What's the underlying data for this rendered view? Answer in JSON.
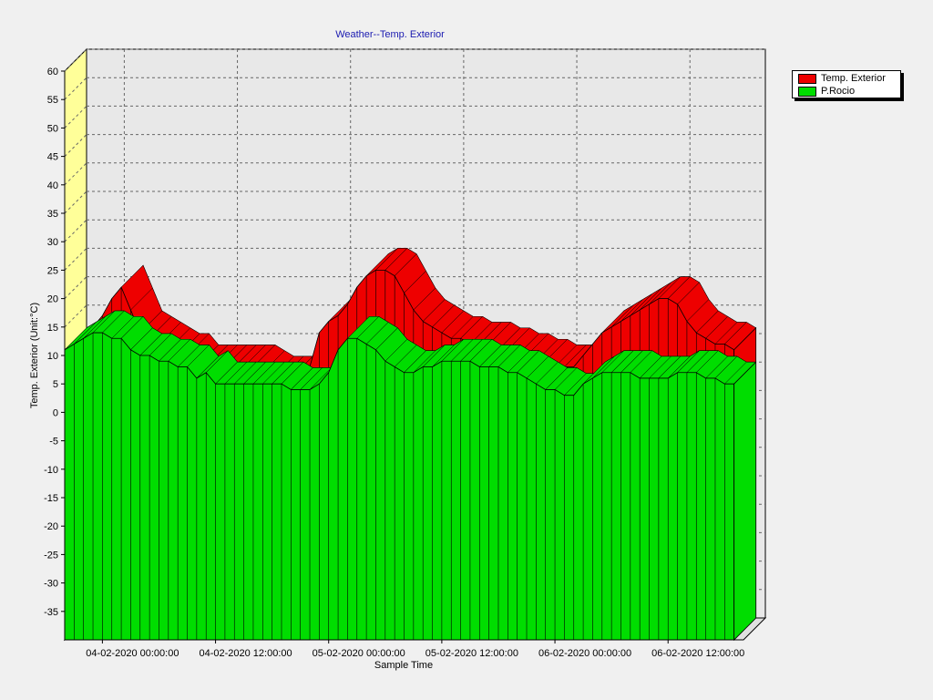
{
  "chart_data": {
    "type": "area",
    "title": "Weather--Temp. Exterior",
    "xlabel": "Sample Time",
    "ylabel": "Temp. Exterior     (Unit:°C)",
    "ylim": [
      -40,
      60
    ],
    "ytick_labels": [
      "60",
      "55",
      "50",
      "45",
      "40",
      "35",
      "30",
      "25",
      "20",
      "15",
      "10",
      "5",
      "0",
      "-5",
      "-10",
      "-15",
      "-20",
      "-25",
      "-30",
      "-35"
    ],
    "xtick_labels": [
      "04-02-2020 00:00:00",
      "04-02-2020 12:00:00",
      "05-02-2020 00:00:00",
      "05-02-2020 12:00:00",
      "06-02-2020 00:00:00",
      "06-02-2020 12:00:00"
    ],
    "x_hours": [
      0,
      1,
      2,
      3,
      4,
      5,
      6,
      7,
      8,
      9,
      10,
      11,
      12,
      13,
      14,
      15,
      16,
      17,
      18,
      19,
      20,
      21,
      22,
      23,
      24,
      25,
      26,
      27,
      28,
      29,
      30,
      31,
      32,
      33,
      34,
      35,
      36,
      37,
      38,
      39,
      40,
      41,
      42,
      43,
      44,
      45,
      46,
      47,
      48,
      49,
      50,
      51,
      52,
      53,
      54,
      55,
      56,
      57,
      58,
      59,
      60,
      61,
      62,
      63,
      64,
      65,
      66,
      67,
      68,
      69,
      70,
      71
    ],
    "grid": true,
    "legend_position": "top-right",
    "series": [
      {
        "name": "Temp. Exterior",
        "color": "#ee0000",
        "values": [
          11,
          12,
          13,
          15,
          17,
          20,
          22,
          18,
          14,
          13,
          12,
          11,
          10,
          10,
          8,
          8,
          8,
          8,
          8,
          8,
          8,
          7,
          6,
          6,
          6,
          6,
          8,
          14,
          16,
          17,
          19,
          22,
          24,
          25,
          25,
          24,
          21,
          18,
          16,
          15,
          14,
          13,
          13,
          12,
          12,
          12,
          11,
          11,
          10,
          10,
          9,
          9,
          8,
          8,
          8,
          10,
          12,
          14,
          15,
          16,
          17,
          18,
          19,
          20,
          20,
          19,
          16,
          14,
          13,
          12,
          12,
          11
        ]
      },
      {
        "name": "P.Rocio",
        "color": "#00dd00",
        "values": [
          11,
          12,
          13,
          14,
          14,
          13,
          13,
          11,
          10,
          10,
          9,
          9,
          8,
          8,
          6,
          7,
          5,
          5,
          5,
          5,
          5,
          5,
          5,
          5,
          4,
          4,
          4,
          5,
          7,
          11,
          13,
          13,
          12,
          11,
          9,
          8,
          7,
          7,
          8,
          8,
          9,
          9,
          9,
          9,
          8,
          8,
          8,
          7,
          7,
          6,
          5,
          4,
          4,
          3,
          3,
          5,
          6,
          7,
          7,
          7,
          7,
          6,
          6,
          6,
          6,
          7,
          7,
          7,
          6,
          6,
          5,
          5
        ]
      }
    ]
  }
}
